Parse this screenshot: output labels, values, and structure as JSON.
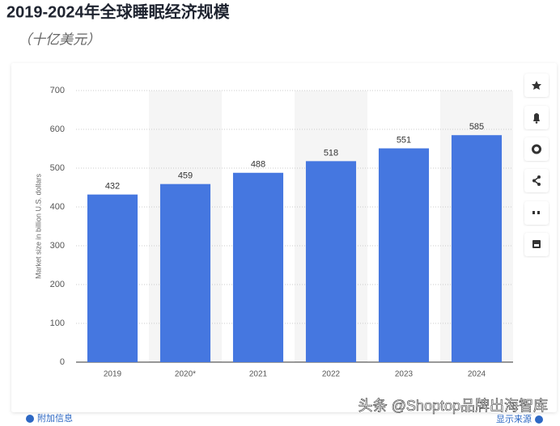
{
  "chart_data": {
    "type": "bar",
    "title": "2019-2024年全球睡眠经济规模",
    "subtitle": "（十亿美元）",
    "y_label": "Market size in billion U.S. dollars",
    "categories": [
      "2019",
      "2020*",
      "2021",
      "2022",
      "2023",
      "2024"
    ],
    "values": [
      432,
      459,
      488,
      518,
      551,
      585
    ],
    "color": "#4577e0",
    "ylim": [
      0,
      700
    ],
    "yticks": [
      0,
      100,
      200,
      300,
      400,
      500,
      600,
      700
    ],
    "grid": true
  },
  "footer": {
    "info": "附加信息",
    "source": "显示来源"
  },
  "watermark": "头条 @Shoptop品牌出海智库"
}
